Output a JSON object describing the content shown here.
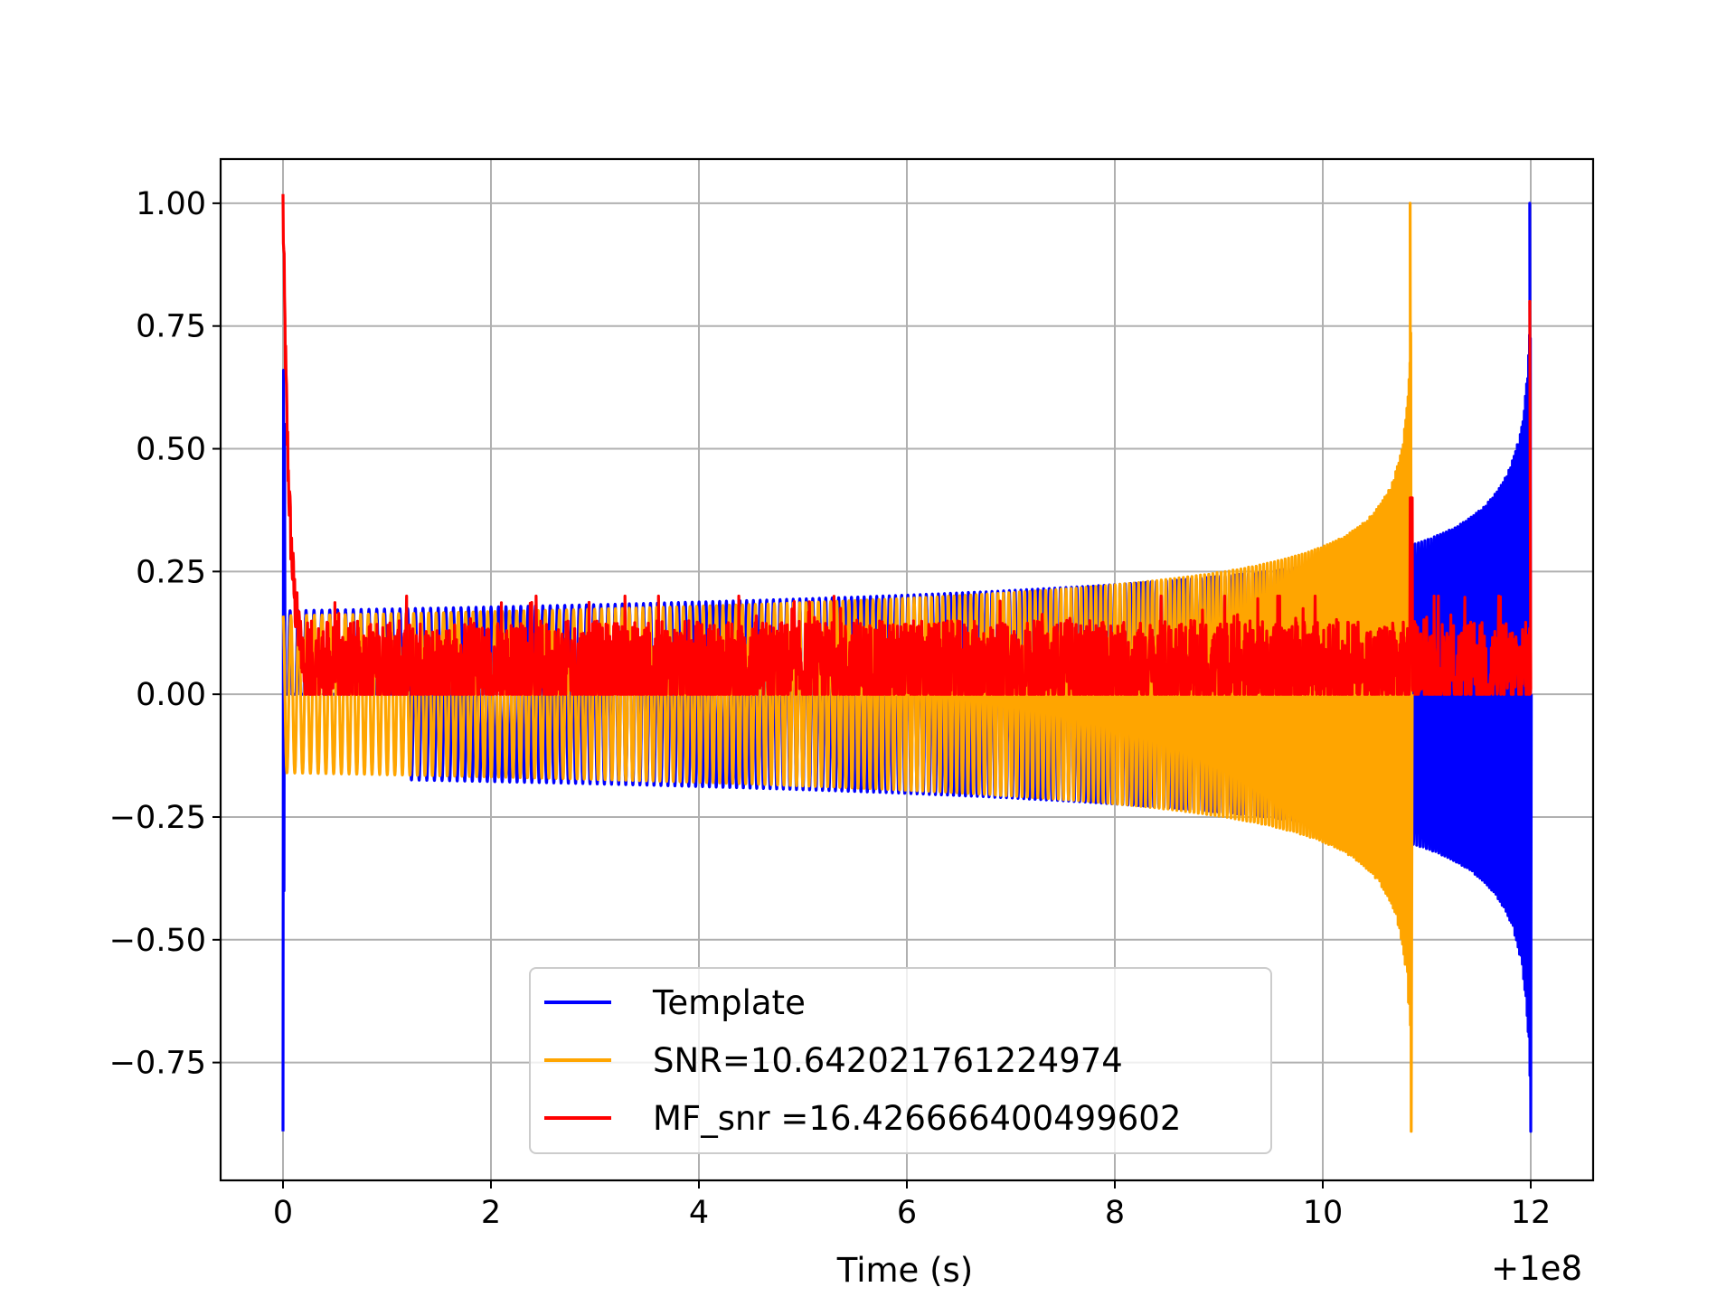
{
  "chart_data": {
    "type": "line",
    "title": "",
    "xlabel": "Time (s)",
    "ylabel": "",
    "x_offset_label": "+1e8",
    "xlim": [
      -0.6,
      12.6
    ],
    "ylim": [
      -0.99,
      1.09
    ],
    "x_ticks": [
      0,
      2,
      4,
      6,
      8,
      10,
      12
    ],
    "x_tick_labels": [
      "0",
      "2",
      "4",
      "6",
      "8",
      "10",
      "12"
    ],
    "y_ticks": [
      -0.75,
      -0.5,
      -0.25,
      0.0,
      0.25,
      0.5,
      0.75,
      1.0
    ],
    "y_tick_labels": [
      "−0.75",
      "−0.50",
      "−0.25",
      "0.00",
      "0.25",
      "0.50",
      "0.75",
      "1.00"
    ],
    "grid": true,
    "legend_position": "lower-center",
    "series": [
      {
        "name": "Template",
        "color": "#0000ff",
        "description_values": {
          "start_time": 0.0,
          "end_time": 12.0,
          "plateau_amplitude": 0.17,
          "pre_merger_amplitude_at_10_8": 0.27,
          "peak_max": 1.0,
          "peak_min": -0.89,
          "initial_spike_max": 0.66,
          "initial_spike_min": -0.89
        }
      },
      {
        "name": "SNR=10.642021761224974",
        "color": "#ffa500",
        "description_values": {
          "start_time": 0.0,
          "end_time": 10.85,
          "plateau_amplitude": 0.16,
          "peak_max": 1.0,
          "peak_min": -0.89
        }
      },
      {
        "name": "MF_snr =16.426666400499602",
        "color": "#ff0000",
        "description_values": {
          "start_time": 0.0,
          "end_time": 12.0,
          "start_value": 1.0,
          "noise_mean": 0.05,
          "noise_range": [
            0.0,
            0.18
          ],
          "spike_at_10_85": 0.4,
          "spike_at_12": 0.8
        }
      }
    ]
  }
}
